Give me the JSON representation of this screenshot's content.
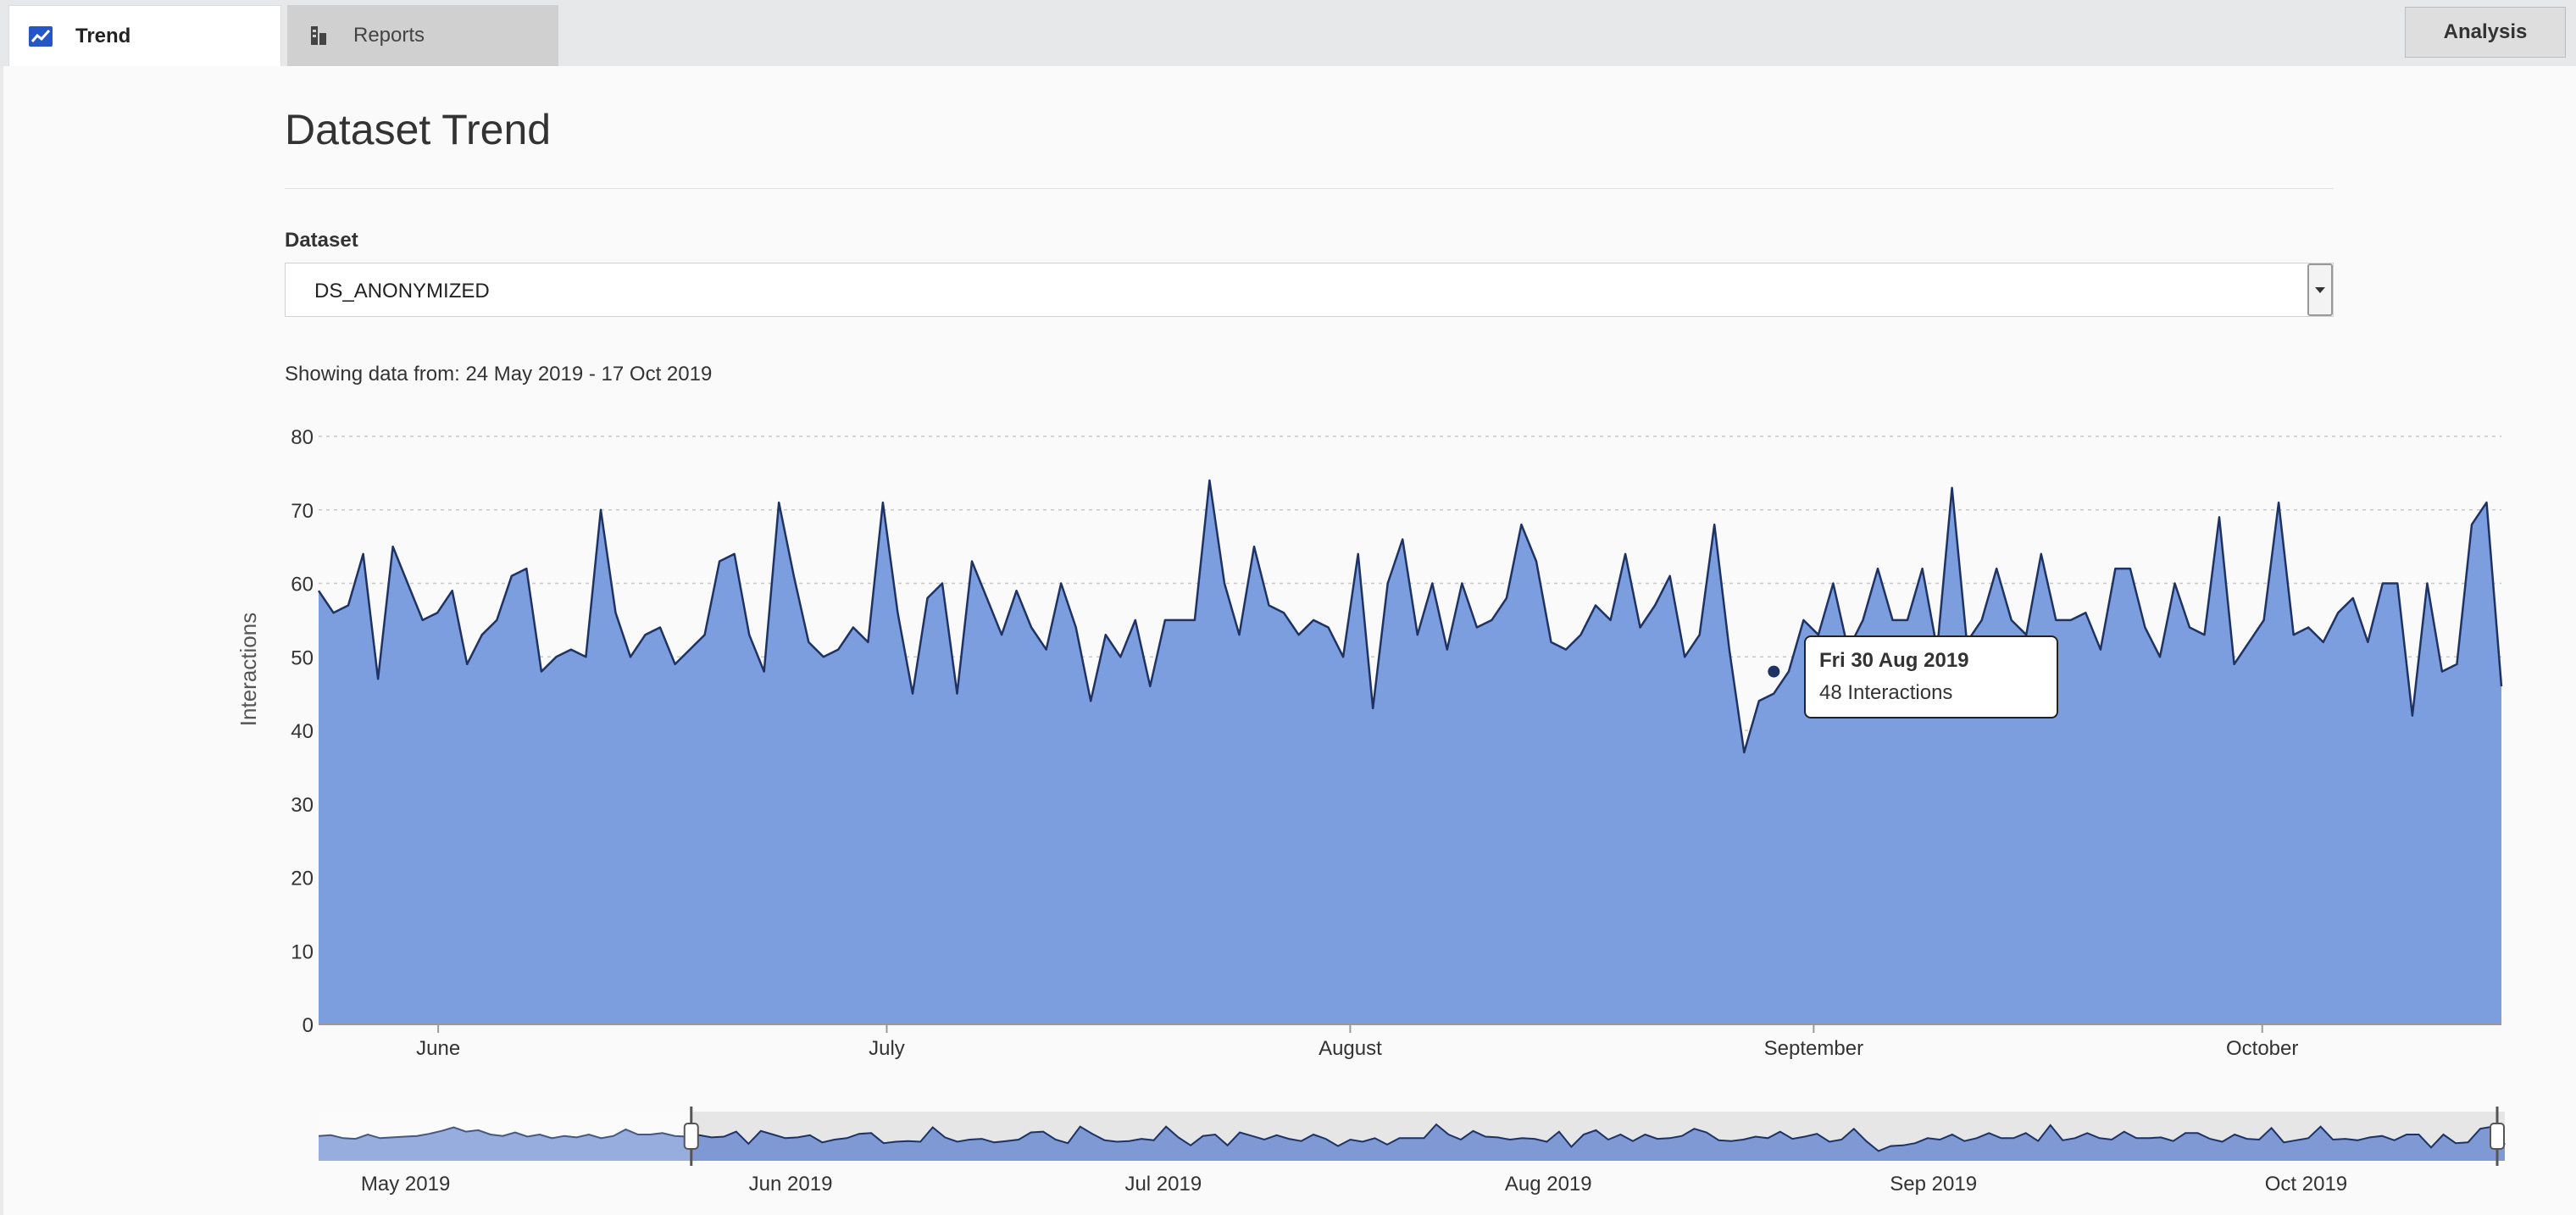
{
  "tabs": {
    "trend": {
      "label": "Trend"
    },
    "reports": {
      "label": "Reports"
    },
    "analysis": {
      "label": "Analysis"
    }
  },
  "page": {
    "title": "Dataset Trend",
    "dataset_label": "Dataset",
    "dataset_value": "DS_ANONYMIZED",
    "range_text": "Showing data from: 24 May 2019 - 17 Oct 2019"
  },
  "tooltip": {
    "title": "Fri 30 Aug 2019",
    "value": "48 Interactions"
  },
  "colors": {
    "area_fill": "#7d9ede",
    "line": "#1e3264",
    "navigator_fill": "#7390d2",
    "selected_range_bg": "#e6e6e6"
  },
  "chart_data": {
    "type": "area",
    "title": "",
    "xlabel": "",
    "ylabel": "Interactions",
    "ylim": [
      0,
      80
    ],
    "yticks": [
      0,
      10,
      20,
      30,
      40,
      50,
      60,
      70,
      80
    ],
    "grid": true,
    "x_start": "2019-05-24",
    "x_end": "2019-10-17",
    "x_tick_labels": [
      {
        "date": "2019-06-01",
        "label": "June"
      },
      {
        "date": "2019-07-01",
        "label": "July"
      },
      {
        "date": "2019-08-01",
        "label": "August"
      },
      {
        "date": "2019-09-01",
        "label": "September"
      },
      {
        "date": "2019-10-01",
        "label": "October"
      }
    ],
    "highlight": {
      "date": "2019-08-30",
      "value": 48
    },
    "values": [
      59,
      56,
      57,
      64,
      47,
      65,
      60,
      55,
      56,
      59,
      49,
      53,
      55,
      61,
      62,
      48,
      50,
      51,
      50,
      70,
      56,
      50,
      53,
      54,
      49,
      51,
      53,
      63,
      64,
      53,
      48,
      71,
      61,
      52,
      50,
      51,
      54,
      52,
      71,
      56,
      45,
      58,
      60,
      45,
      63,
      58,
      53,
      59,
      54,
      51,
      60,
      54,
      44,
      53,
      50,
      55,
      46,
      55,
      55,
      55,
      74,
      60,
      53,
      65,
      57,
      56,
      53,
      55,
      54,
      50,
      64,
      43,
      60,
      66,
      53,
      60,
      51,
      60,
      54,
      55,
      58,
      68,
      63,
      52,
      51,
      53,
      57,
      55,
      64,
      54,
      57,
      61,
      50,
      53,
      68,
      51,
      37,
      44,
      45,
      48,
      55,
      53,
      60,
      51,
      55,
      62,
      55,
      55,
      62,
      51,
      73,
      52,
      55,
      62,
      55,
      53,
      64,
      55,
      55,
      56,
      51,
      62,
      62,
      54,
      50,
      60,
      54,
      53,
      69,
      49,
      52,
      55,
      71,
      53,
      54,
      52,
      56,
      58,
      52,
      60,
      60,
      42,
      60,
      48,
      49,
      68,
      71,
      46
    ]
  },
  "navigator": {
    "x_start": "2019-04-24",
    "selection_start": "2019-05-24",
    "selection_end": "2019-10-17",
    "tick_labels": [
      {
        "date": "2019-05-01",
        "label": "May 2019"
      },
      {
        "date": "2019-06-01",
        "label": "Jun 2019"
      },
      {
        "date": "2019-07-01",
        "label": "Jul 2019"
      },
      {
        "date": "2019-08-01",
        "label": "Aug 2019"
      },
      {
        "date": "2019-09-01",
        "label": "Sep 2019"
      },
      {
        "date": "2019-10-01",
        "label": "Oct 2019"
      }
    ],
    "pre_values": [
      58,
      59,
      55,
      54,
      60,
      55,
      56,
      57,
      58,
      61,
      65,
      70,
      64,
      66,
      60,
      58,
      63,
      57,
      60,
      55,
      58,
      56,
      60,
      55,
      58,
      67,
      60,
      60,
      62,
      58,
      57
    ]
  }
}
